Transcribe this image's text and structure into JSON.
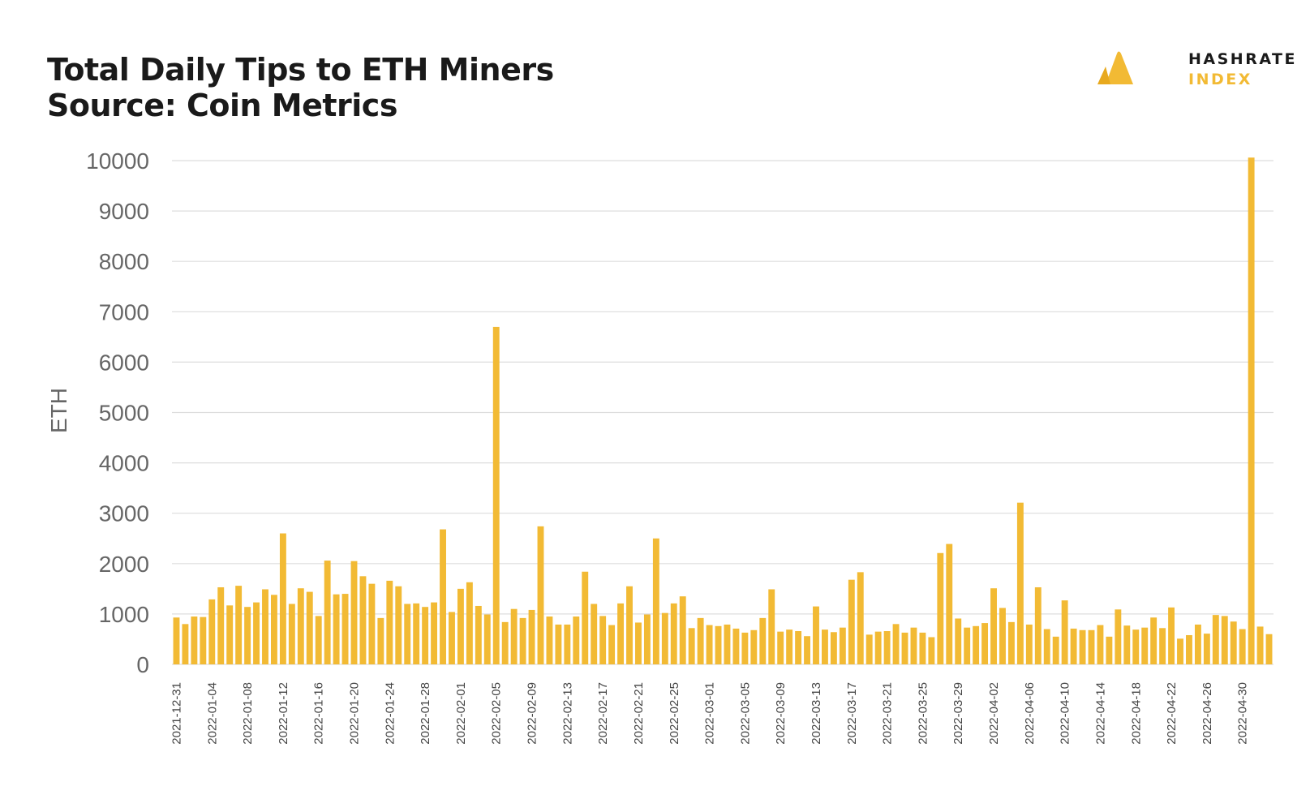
{
  "title": {
    "line1": "Total Daily Tips to ETH Miners",
    "line2": "Source: Coin Metrics"
  },
  "logo": {
    "word1": "HASHRATE",
    "word2": "INDEX",
    "icon": "hashrate-index-logo-icon"
  },
  "colors": {
    "bar": "#f2ba34",
    "grid": "#dddddd",
    "text": "#1a1a1a",
    "axis_text": "#666666",
    "logo_accent": "#f2ba34"
  },
  "chart_data": {
    "type": "bar",
    "title": "Total Daily Tips to ETH Miners",
    "subtitle": "Source: Coin Metrics",
    "xlabel": "",
    "ylabel": "ETH",
    "ylim": [
      0,
      10000
    ],
    "yticks": [
      0,
      1000,
      2000,
      3000,
      4000,
      5000,
      6000,
      7000,
      8000,
      9000,
      10000
    ],
    "grid": true,
    "legend": "none",
    "start_date": "2021-12-31",
    "tick_labels": [
      "2021-12-31",
      "2022-01-04",
      "2022-01-08",
      "2022-01-12",
      "2022-01-16",
      "2022-01-20",
      "2022-01-24",
      "2022-01-28",
      "2022-02-01",
      "2022-02-05",
      "2022-02-09",
      "2022-02-13",
      "2022-02-17",
      "2022-02-21",
      "2022-02-25",
      "2022-03-01",
      "2022-03-05",
      "2022-03-09",
      "2022-03-13",
      "2022-03-17",
      "2022-03-21",
      "2022-03-25",
      "2022-03-29",
      "2022-04-02",
      "2022-04-06",
      "2022-04-10",
      "2022-04-14",
      "2022-04-18",
      "2022-04-22",
      "2022-04-26",
      "2022-04-30"
    ],
    "categories": [
      "2021-12-31",
      "2022-01-01",
      "2022-01-02",
      "2022-01-03",
      "2022-01-04",
      "2022-01-05",
      "2022-01-06",
      "2022-01-07",
      "2022-01-08",
      "2022-01-09",
      "2022-01-10",
      "2022-01-11",
      "2022-01-12",
      "2022-01-13",
      "2022-01-14",
      "2022-01-15",
      "2022-01-16",
      "2022-01-17",
      "2022-01-18",
      "2022-01-19",
      "2022-01-20",
      "2022-01-21",
      "2022-01-22",
      "2022-01-23",
      "2022-01-24",
      "2022-01-25",
      "2022-01-26",
      "2022-01-27",
      "2022-01-28",
      "2022-01-29",
      "2022-01-30",
      "2022-01-31",
      "2022-02-01",
      "2022-02-02",
      "2022-02-03",
      "2022-02-04",
      "2022-02-05",
      "2022-02-06",
      "2022-02-07",
      "2022-02-08",
      "2022-02-09",
      "2022-02-10",
      "2022-02-11",
      "2022-02-12",
      "2022-02-13",
      "2022-02-14",
      "2022-02-15",
      "2022-02-16",
      "2022-02-17",
      "2022-02-18",
      "2022-02-19",
      "2022-02-20",
      "2022-02-21",
      "2022-02-22",
      "2022-02-23",
      "2022-02-24",
      "2022-02-25",
      "2022-02-26",
      "2022-02-27",
      "2022-02-28",
      "2022-03-01",
      "2022-03-02",
      "2022-03-03",
      "2022-03-04",
      "2022-03-05",
      "2022-03-06",
      "2022-03-07",
      "2022-03-08",
      "2022-03-09",
      "2022-03-10",
      "2022-03-11",
      "2022-03-12",
      "2022-03-13",
      "2022-03-14",
      "2022-03-15",
      "2022-03-16",
      "2022-03-17",
      "2022-03-18",
      "2022-03-19",
      "2022-03-20",
      "2022-03-21",
      "2022-03-22",
      "2022-03-23",
      "2022-03-24",
      "2022-03-25",
      "2022-03-26",
      "2022-03-27",
      "2022-03-28",
      "2022-03-29",
      "2022-03-30",
      "2022-03-31",
      "2022-04-01",
      "2022-04-02",
      "2022-04-03",
      "2022-04-04",
      "2022-04-05",
      "2022-04-06",
      "2022-04-07",
      "2022-04-08",
      "2022-04-09",
      "2022-04-10",
      "2022-04-11",
      "2022-04-12",
      "2022-04-13",
      "2022-04-14",
      "2022-04-15",
      "2022-04-16",
      "2022-04-17",
      "2022-04-18",
      "2022-04-19",
      "2022-04-20",
      "2022-04-21",
      "2022-04-22",
      "2022-04-23",
      "2022-04-24",
      "2022-04-25",
      "2022-04-26",
      "2022-04-27",
      "2022-04-28",
      "2022-04-29",
      "2022-04-30",
      "2022-05-01",
      "2022-05-02",
      "2022-05-03"
    ],
    "values": [
      930,
      800,
      950,
      940,
      1290,
      1530,
      1170,
      1560,
      1140,
      1230,
      1490,
      1380,
      2600,
      1200,
      1510,
      1440,
      960,
      2060,
      1390,
      1400,
      2050,
      1750,
      1600,
      920,
      1660,
      1550,
      1200,
      1210,
      1140,
      1230,
      2680,
      1040,
      1500,
      1630,
      1160,
      990,
      6700,
      840,
      1100,
      920,
      1080,
      2740,
      950,
      790,
      790,
      950,
      1840,
      1200,
      960,
      780,
      1210,
      1550,
      830,
      990,
      2500,
      1020,
      1210,
      1350,
      720,
      920,
      780,
      760,
      790,
      710,
      630,
      680,
      920,
      1490,
      650,
      690,
      660,
      560,
      1150,
      690,
      640,
      730,
      1680,
      1830,
      590,
      650,
      660,
      800,
      630,
      730,
      630,
      540,
      2210,
      2390,
      910,
      730,
      760,
      820,
      1510,
      1120,
      840,
      3210,
      790,
      1530,
      700,
      550,
      1270,
      710,
      680,
      680,
      780,
      550,
      1090,
      770,
      690,
      730,
      930,
      720,
      1130,
      510,
      580,
      790,
      610,
      980,
      960,
      850,
      700,
      10060,
      750,
      600
    ]
  }
}
